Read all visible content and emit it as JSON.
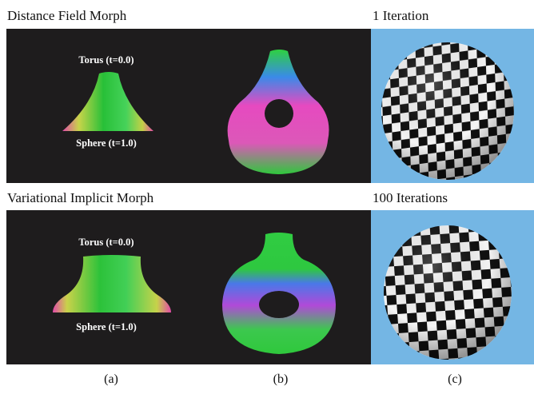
{
  "rows": [
    {
      "title": "Distance Field Morph",
      "right_title": "1 Iteration",
      "top_label": "Torus (t=0.0)",
      "bottom_label": "Sphere (t=1.0)"
    },
    {
      "title": "Variational Implicit Morph",
      "right_title": "100 Iterations",
      "top_label": "Torus (t=0.0)",
      "bottom_label": "Sphere (t=1.0)"
    }
  ],
  "captions": [
    "(a)",
    "(b)",
    "(c)"
  ],
  "colors": {
    "panel_background": "#1e1c1d",
    "sphere_background": "#74b6e4",
    "surface_green": "#2fc83c",
    "surface_magenta": "#e03cb4",
    "surface_blue": "#3c78e6",
    "checker_dark": "#101010",
    "checker_light": "#f4f4f4"
  }
}
